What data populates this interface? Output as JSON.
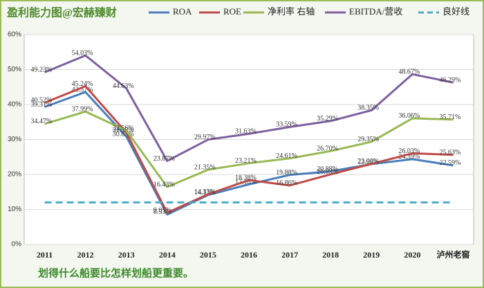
{
  "chart_data": {
    "type": "line",
    "title": "盈利能力图@宏赫臻财",
    "footer": "划得什么船要比怎样划船更重要。",
    "categories": [
      "2011",
      "2012",
      "2013",
      "2014",
      "2015",
      "2016",
      "2017",
      "2018",
      "2019",
      "2020",
      "泸州老窖"
    ],
    "ylim": [
      0,
      60
    ],
    "yticks": [
      {
        "value": 0,
        "label": "0%"
      },
      {
        "value": 10,
        "label": "10%"
      },
      {
        "value": 20,
        "label": "20%"
      },
      {
        "value": 30,
        "label": "30%"
      },
      {
        "value": 40,
        "label": "40%"
      },
      {
        "value": 50,
        "label": "50%"
      },
      {
        "value": 60,
        "label": "60%"
      }
    ],
    "grid": true,
    "series": [
      {
        "name": "ROA",
        "color": "#4a7ebb",
        "values": [
          39.31,
          43.57,
          30.83,
          8.53,
          14.13,
          17.18,
          19.88,
          20.88,
          22.96,
          24.39,
          22.59
        ],
        "value_labels": [
          "39.31%",
          "43.57%",
          "30.83%",
          "8.53%",
          "14.13%",
          "17.18%",
          "19.88%",
          "20.88%",
          "22.96%",
          "24.39%",
          "22.59%"
        ]
      },
      {
        "name": "ROE",
        "color": "#be4b48",
        "values": [
          40.52,
          45.24,
          31.95,
          9.05,
          14.33,
          18.38,
          16.86,
          20.03,
          23.02,
          26.03,
          25.63
        ],
        "value_labels": [
          "40.52%",
          "45.24%",
          "31.95%",
          "9.05%",
          "14.33%",
          "18.38%",
          "16.86%",
          "20.03%",
          "23.02%",
          "26.03%",
          "25.63%"
        ]
      },
      {
        "name": "净利率 右轴",
        "color": "#98b954",
        "values": [
          34.47,
          37.99,
          32.56,
          16.43,
          21.35,
          23.21,
          24.61,
          26.7,
          29.35,
          36.06,
          35.71
        ],
        "value_labels": [
          "34.47%",
          "37.99%",
          "32.56%",
          "16.43%",
          "21.35%",
          "23.21%",
          "24.61%",
          "26.70%",
          "29.35%",
          "36.06%",
          "35.71%"
        ]
      },
      {
        "name": "EBITDA/营收",
        "color": "#7d60a0",
        "values": [
          49.23,
          54.03,
          44.63,
          23.87,
          29.97,
          31.63,
          33.59,
          35.29,
          38.35,
          48.67,
          46.29
        ],
        "value_labels": [
          "49.23%",
          "54.03%",
          "44.63%",
          "23.87%",
          "29.97%",
          "31.63%",
          "33.59%",
          "35.29%",
          "38.35%",
          "48.67%",
          "46.29%"
        ]
      },
      {
        "name": "良好线",
        "color": "#4bacc6",
        "dashed": true,
        "values": [
          12,
          12,
          12,
          12,
          12,
          12,
          12,
          12,
          12,
          12,
          12
        ]
      }
    ]
  }
}
